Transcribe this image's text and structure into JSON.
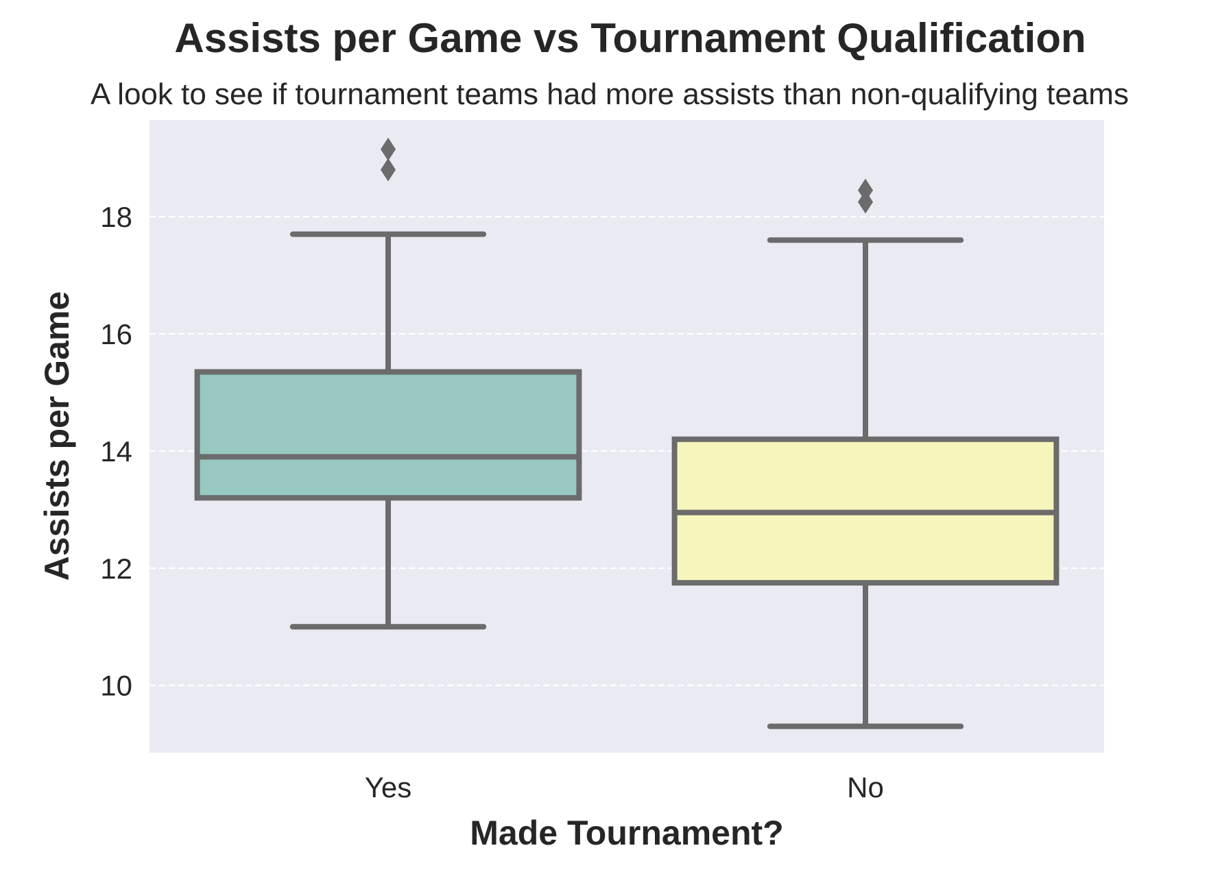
{
  "chart_data": {
    "type": "boxplot",
    "title": "Assists per Game vs Tournament Qualification",
    "subtitle": "A look to see if tournament teams had more assists than non-qualifying teams",
    "xlabel": "Made Tournament?",
    "ylabel": "Assists per Game",
    "categories": [
      "Yes",
      "No"
    ],
    "ylim": [
      8.85,
      19.65
    ],
    "yticks": [
      10,
      12,
      14,
      16,
      18
    ],
    "grid": {
      "axis": "y",
      "style": "dashed"
    },
    "series": [
      {
        "name": "Yes",
        "whisker_low": 11.0,
        "q1": 13.2,
        "median": 13.9,
        "q3": 15.35,
        "whisker_high": 17.7,
        "outliers": [
          18.8,
          19.15
        ],
        "color": "#97c9c1"
      },
      {
        "name": "No",
        "whisker_low": 9.3,
        "q1": 11.75,
        "median": 12.95,
        "q3": 14.2,
        "whisker_high": 17.6,
        "outliers": [
          18.25,
          18.45
        ],
        "color": "#f6f5bc"
      }
    ],
    "colors": {
      "plot_background": "#eaeaf2",
      "box_edge": "#6b6b6b",
      "grid": "#ffffff",
      "text": "#262626"
    }
  }
}
